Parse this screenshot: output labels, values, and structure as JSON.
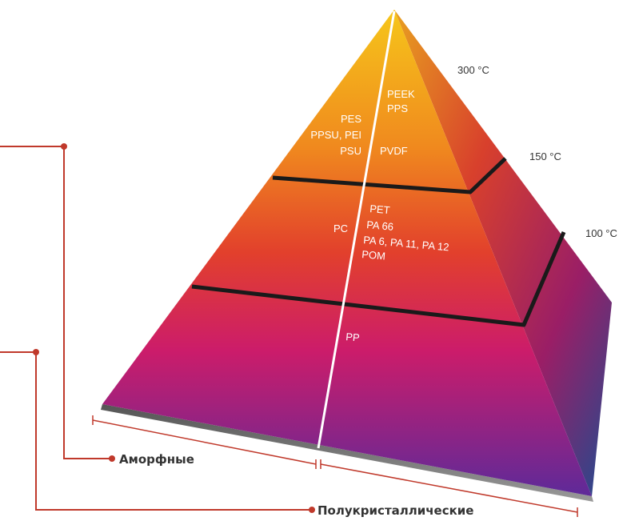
{
  "temperatures": {
    "top": "300 °C",
    "middle": "150 °C",
    "bottom": "100 °C"
  },
  "tiers": {
    "top": {
      "amorphous": [
        "PES",
        "PPSU, PEI",
        "PSU"
      ],
      "semicrystalline": [
        "PEEK",
        "PPS",
        "PVDF"
      ]
    },
    "middle": {
      "amorphous": [
        "PC"
      ],
      "semicrystalline": [
        "PET",
        "PA 66",
        "PA 6, PA 11, PA 12",
        "POM"
      ]
    },
    "bottom": {
      "semicrystalline": [
        "PP"
      ]
    }
  },
  "legend": {
    "amorphous": "Аморфные",
    "semicrystalline": "Полукристаллические"
  },
  "colors": {
    "accent_line": "#c0392b",
    "tier_border": "#1a1a1a"
  }
}
